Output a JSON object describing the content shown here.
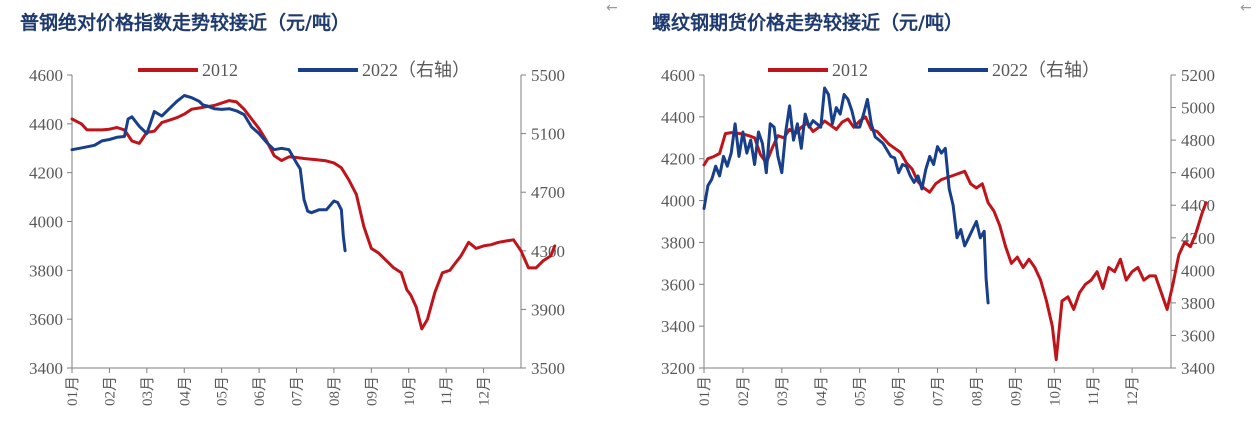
{
  "icons": {
    "left_arrow": "back-arrow-icon",
    "right_arrow": "back-arrow-icon"
  },
  "arrow_glyph": "←",
  "colors": {
    "series_2012": "#c0141b",
    "series_2022": "#173f8a",
    "title": "#1f3a6e",
    "axis": "#7f7f7f"
  },
  "chart_data": [
    {
      "type": "line",
      "title": "普钢绝对价格指数走势较接近（元/吨）",
      "categories": [
        "01月",
        "02月",
        "03月",
        "04月",
        "05月",
        "06月",
        "07月",
        "08月",
        "09月",
        "10月",
        "11月",
        "12月"
      ],
      "legend": {
        "placement": "top",
        "entries": [
          "2012",
          "2022（右轴）"
        ]
      },
      "ylim_left": [
        3400,
        4600
      ],
      "yticks_left": [
        3400,
        3600,
        3800,
        4000,
        4200,
        4400,
        4600
      ],
      "ylim_right": [
        3500,
        5500
      ],
      "yticks_right": [
        3500,
        3900,
        4300,
        4700,
        5100,
        5500
      ],
      "grid": false,
      "series": [
        {
          "name": "2012",
          "axis": "left",
          "x": [
            0,
            0.1,
            0.25,
            0.4,
            0.6,
            0.8,
            1.0,
            1.2,
            1.4,
            1.6,
            1.8,
            2.0,
            2.2,
            2.4,
            2.6,
            2.8,
            3.0,
            3.2,
            3.4,
            3.6,
            3.8,
            4.0,
            4.2,
            4.4,
            4.6,
            4.8,
            5.0,
            5.2,
            5.4,
            5.6,
            5.8,
            6.0,
            6.2,
            6.4,
            6.6,
            6.8,
            7.0,
            7.2,
            7.4,
            7.6,
            7.8,
            8.0,
            8.2,
            8.4,
            8.6,
            8.8,
            8.95,
            9.05,
            9.2,
            9.35,
            9.5,
            9.7,
            9.9,
            10.1,
            10.2,
            10.4,
            10.6,
            10.8,
            11.0,
            11.2,
            11.4,
            11.6,
            11.8,
            12.0,
            12.2,
            12.4,
            12.6,
            12.8,
            12.9
          ],
          "values": [
            4420,
            4412,
            4400,
            4375,
            4375,
            4375,
            4378,
            4385,
            4375,
            4330,
            4320,
            4365,
            4370,
            4405,
            4415,
            4425,
            4440,
            4460,
            4465,
            4470,
            4475,
            4485,
            4495,
            4490,
            4460,
            4420,
            4380,
            4330,
            4270,
            4250,
            4265,
            4262,
            4258,
            4255,
            4252,
            4248,
            4240,
            4220,
            4170,
            4110,
            3980,
            3890,
            3870,
            3840,
            3810,
            3790,
            3720,
            3700,
            3650,
            3560,
            3600,
            3710,
            3790,
            3800,
            3820,
            3860,
            3915,
            3890,
            3900,
            3905,
            3915,
            3920,
            3925,
            3880,
            3810,
            3810,
            3840,
            3860,
            3900
          ]
        },
        {
          "name": "2022（右轴）",
          "axis": "right",
          "x": [
            0,
            0.2,
            0.4,
            0.6,
            0.8,
            1.0,
            1.2,
            1.4,
            1.5,
            1.6,
            1.8,
            2.0,
            2.1,
            2.2,
            2.4,
            2.6,
            2.8,
            3.0,
            3.2,
            3.4,
            3.5,
            3.6,
            3.8,
            4.0,
            4.2,
            4.4,
            4.6,
            4.8,
            5.0,
            5.2,
            5.4,
            5.6,
            5.8,
            6.0,
            6.1,
            6.2,
            6.3,
            6.4,
            6.6,
            6.8,
            7.0,
            7.1,
            7.2,
            7.25,
            7.3
          ],
          "values": [
            4990,
            5000,
            5010,
            5020,
            5050,
            5060,
            5075,
            5080,
            5200,
            5215,
            5150,
            5100,
            5175,
            5250,
            5220,
            5270,
            5320,
            5360,
            5345,
            5320,
            5295,
            5290,
            5270,
            5265,
            5270,
            5255,
            5230,
            5145,
            5100,
            5040,
            4990,
            5000,
            4990,
            4900,
            4860,
            4650,
            4570,
            4560,
            4580,
            4580,
            4640,
            4630,
            4580,
            4400,
            4300
          ]
        }
      ]
    },
    {
      "type": "line",
      "title": "螺纹钢期货价格走势较接近（元/吨）",
      "categories": [
        "01月",
        "02月",
        "03月",
        "04月",
        "05月",
        "06月",
        "07月",
        "08月",
        "09月",
        "10月",
        "11月",
        "12月"
      ],
      "legend": {
        "placement": "top",
        "entries": [
          "2012",
          "2022（右轴）"
        ]
      },
      "ylim_left": [
        3200,
        4600
      ],
      "yticks_left": [
        3200,
        3400,
        3600,
        3800,
        4000,
        4200,
        4400,
        4600
      ],
      "ylim_right": [
        3400,
        5200
      ],
      "yticks_right": [
        3400,
        3600,
        3800,
        4000,
        4200,
        4400,
        4600,
        4800,
        5000,
        5200
      ],
      "grid": false,
      "series": [
        {
          "name": "2012",
          "axis": "left",
          "x": [
            0,
            0.1,
            0.25,
            0.4,
            0.55,
            0.7,
            0.85,
            1.0,
            1.15,
            1.3,
            1.45,
            1.6,
            1.75,
            1.9,
            2.05,
            2.2,
            2.35,
            2.5,
            2.65,
            2.8,
            2.95,
            3.1,
            3.25,
            3.4,
            3.55,
            3.7,
            3.85,
            4.0,
            4.15,
            4.3,
            4.45,
            4.6,
            4.75,
            4.9,
            5.05,
            5.2,
            5.35,
            5.5,
            5.65,
            5.8,
            5.95,
            6.1,
            6.25,
            6.4,
            6.55,
            6.7,
            6.85,
            7.0,
            7.15,
            7.3,
            7.45,
            7.6,
            7.75,
            7.9,
            8.05,
            8.2,
            8.35,
            8.5,
            8.65,
            8.8,
            8.95,
            9.05,
            9.2,
            9.35,
            9.5,
            9.65,
            9.8,
            9.95,
            10.1,
            10.25,
            10.4,
            10.55,
            10.7,
            10.85,
            11.0,
            11.15,
            11.3,
            11.45,
            11.6,
            11.75,
            11.9,
            12.05,
            12.2,
            12.35,
            12.5,
            12.65,
            12.8,
            12.9
          ],
          "values": [
            4170,
            4200,
            4210,
            4225,
            4320,
            4325,
            4322,
            4318,
            4310,
            4300,
            4220,
            4180,
            4250,
            4310,
            4300,
            4340,
            4320,
            4350,
            4370,
            4330,
            4350,
            4380,
            4360,
            4340,
            4375,
            4390,
            4350,
            4380,
            4400,
            4340,
            4330,
            4300,
            4270,
            4250,
            4230,
            4180,
            4150,
            4090,
            4060,
            4040,
            4080,
            4100,
            4110,
            4120,
            4130,
            4140,
            4080,
            4060,
            4080,
            3990,
            3950,
            3880,
            3780,
            3700,
            3730,
            3680,
            3720,
            3680,
            3620,
            3520,
            3400,
            3240,
            3520,
            3540,
            3480,
            3560,
            3600,
            3620,
            3660,
            3580,
            3680,
            3660,
            3720,
            3620,
            3660,
            3680,
            3620,
            3640,
            3640,
            3560,
            3480,
            3600,
            3740,
            3800,
            3780,
            3850,
            3940,
            3990
          ]
        },
        {
          "name": "2022（右轴）",
          "axis": "right",
          "x": [
            0,
            0.1,
            0.2,
            0.3,
            0.4,
            0.5,
            0.6,
            0.7,
            0.8,
            0.9,
            1.0,
            1.1,
            1.2,
            1.3,
            1.4,
            1.5,
            1.6,
            1.7,
            1.8,
            1.9,
            2.0,
            2.1,
            2.2,
            2.3,
            2.4,
            2.5,
            2.6,
            2.7,
            2.8,
            2.9,
            3.0,
            3.1,
            3.2,
            3.3,
            3.4,
            3.5,
            3.6,
            3.7,
            3.8,
            3.9,
            4.0,
            4.1,
            4.2,
            4.3,
            4.4,
            4.5,
            4.6,
            4.7,
            4.8,
            4.9,
            5.0,
            5.1,
            5.2,
            5.3,
            5.4,
            5.5,
            5.6,
            5.7,
            5.8,
            5.9,
            6.0,
            6.1,
            6.2,
            6.3,
            6.4,
            6.5,
            6.6,
            6.7,
            6.8,
            6.9,
            7.0,
            7.1,
            7.2,
            7.25,
            7.3
          ],
          "values": [
            4380,
            4520,
            4560,
            4640,
            4580,
            4700,
            4640,
            4720,
            4900,
            4700,
            4850,
            4720,
            4800,
            4650,
            4850,
            4780,
            4600,
            4900,
            4880,
            4700,
            4600,
            4850,
            5010,
            4800,
            4900,
            4750,
            4960,
            4880,
            4920,
            4900,
            4880,
            5120,
            5080,
            4900,
            5000,
            4960,
            5080,
            5050,
            4980,
            4880,
            4880,
            4960,
            5050,
            4900,
            4820,
            4800,
            4780,
            4740,
            4700,
            4690,
            4600,
            4650,
            4640,
            4580,
            4540,
            4580,
            4500,
            4620,
            4700,
            4650,
            4760,
            4720,
            4750,
            4500,
            4400,
            4200,
            4250,
            4150,
            4200,
            4250,
            4300,
            4200,
            4240,
            3950,
            3800
          ]
        }
      ]
    }
  ]
}
